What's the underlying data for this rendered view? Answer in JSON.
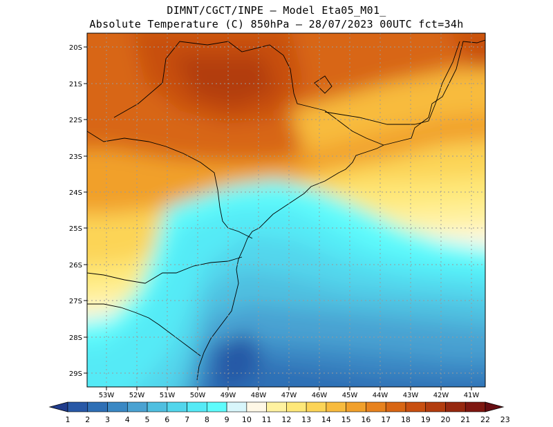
{
  "title": {
    "line1": "DIMNT/CGCT/INPE —  Model Eta05_M01_",
    "line2": "Absolute Temperature (C) 850hPa —  28/07/2023 00UTC fct=34h"
  },
  "map": {
    "lat_labels": [
      "20S",
      "21S",
      "22S",
      "23S",
      "24S",
      "25S",
      "26S",
      "27S",
      "28S",
      "29S"
    ],
    "lon_labels": [
      "53W",
      "52W",
      "51W",
      "50W",
      "49W",
      "48W",
      "47W",
      "46W",
      "45W",
      "44W",
      "43W",
      "42W",
      "41W"
    ],
    "lat_range": [
      -20,
      -29
    ],
    "lon_range": [
      -53,
      -41
    ]
  },
  "colorbar": {
    "labels": [
      "1",
      "2",
      "3",
      "4",
      "5",
      "6",
      "7",
      "8",
      "9",
      "10",
      "11",
      "12",
      "13",
      "14",
      "15",
      "16",
      "17",
      "18",
      "19",
      "20",
      "21",
      "22",
      "23"
    ],
    "colors": [
      "#203c8c",
      "#2858a6",
      "#2e6fb5",
      "#3a88c4",
      "#4aa2d2",
      "#4fbfe0",
      "#52d6ec",
      "#55eaf6",
      "#5efcfc",
      "#d8f6fb",
      "#fff8e6",
      "#fff2a0",
      "#fee879",
      "#fcd457",
      "#f8bb3e",
      "#f1a02b",
      "#e7821e",
      "#d86614",
      "#c84f10",
      "#b23c0e",
      "#96280f",
      "#7e1710",
      "#660d12"
    ]
  }
}
